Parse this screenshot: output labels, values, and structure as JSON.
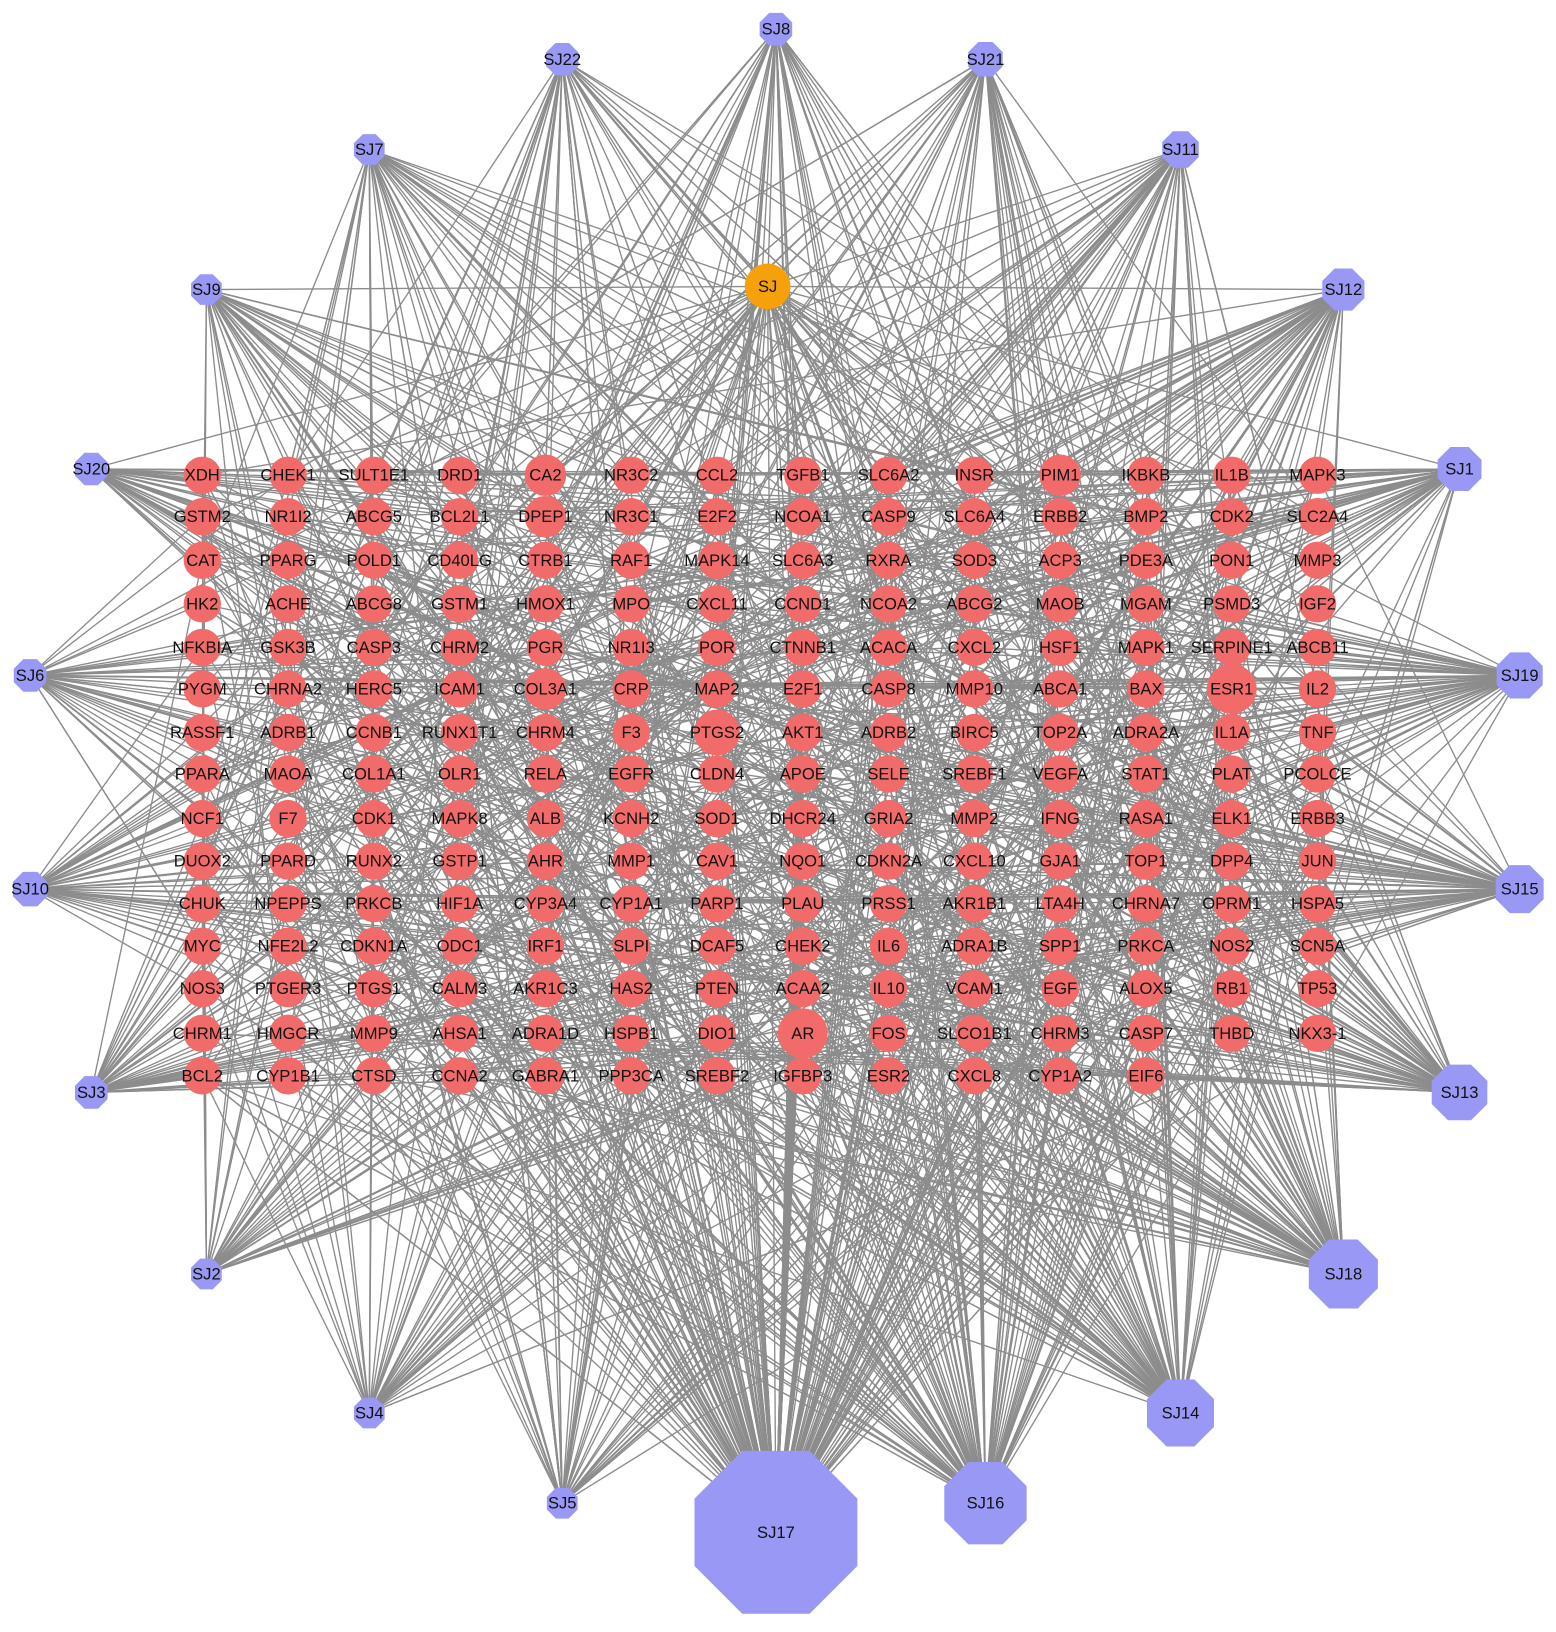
{
  "nodes": {
    "hub": "SJ",
    "compounds": [
      "SJ8",
      "SJ22",
      "SJ21",
      "SJ7",
      "SJ11",
      "SJ9",
      "SJ12",
      "SJ20",
      "SJ1",
      "SJ6",
      "SJ19",
      "SJ10",
      "SJ15",
      "SJ3",
      "SJ13",
      "SJ2",
      "SJ18",
      "SJ4",
      "SJ14",
      "SJ5",
      "SJ16",
      "SJ17"
    ],
    "targets": [
      [
        "XDH",
        "CHEK1",
        "SULT1E1",
        "DRD1",
        "CA2",
        "NR3C2",
        "CCL2",
        "TGFB1",
        "SLC6A2",
        "INSR",
        "PIM1",
        "IKBKB",
        "IL1B",
        "MAPK3"
      ],
      [
        "GSTM2",
        "NR1I2",
        "ABCG5",
        "BCL2L1",
        "DPEP1",
        "NR3C1",
        "E2F2",
        "NCOA1",
        "CASP9",
        "SLC6A4",
        "ERBB2",
        "BMP2",
        "CDK2",
        "SLC2A4"
      ],
      [
        "CAT",
        "PPARG",
        "POLD1",
        "CD40LG",
        "CTRB1",
        "RAF1",
        "MAPK14",
        "SLC6A3",
        "RXRA",
        "SOD3",
        "ACP3",
        "PDE3A",
        "PON1",
        "MMP3"
      ],
      [
        "HK2",
        "ACHE",
        "ABCG8",
        "GSTM1",
        "HMOX1",
        "MPO",
        "CXCL11",
        "CCND1",
        "NCOA2",
        "ABCG2",
        "MAOB",
        "MGAM",
        "PSMD3",
        "IGF2"
      ],
      [
        "NFKBIA",
        "GSK3B",
        "CASP3",
        "CHRM2",
        "PGR",
        "NR1I3",
        "POR",
        "CTNNB1",
        "ACACA",
        "CXCL2",
        "HSF1",
        "MAPK1",
        "SERPINE1",
        "ABCB11"
      ],
      [
        "PYGM",
        "CHRNA2",
        "HERC5",
        "ICAM1",
        "COL3A1",
        "CRP",
        "MAP2",
        "E2F1",
        "CASP8",
        "MMP10",
        "ABCA1",
        "BAX",
        "ESR1",
        "IL2"
      ],
      [
        "RASSF1",
        "ADRB1",
        "CCNB1",
        "RUNX1T1",
        "CHRM4",
        "F3",
        "PTGS2",
        "AKT1",
        "ADRB2",
        "BIRC5",
        "TOP2A",
        "ADRA2A",
        "IL1A",
        "TNF"
      ],
      [
        "PPARA",
        "MAOA",
        "COL1A1",
        "OLR1",
        "RELA",
        "EGFR",
        "CLDN4",
        "APOE",
        "SELE",
        "SREBF1",
        "VEGFA",
        "STAT1",
        "PLAT",
        "PCOLCE"
      ],
      [
        "NCF1",
        "F7",
        "CDK1",
        "MAPK8",
        "ALB",
        "KCNH2",
        "SOD1",
        "DHCR24",
        "GRIA2",
        "MMP2",
        "IFNG",
        "RASA1",
        "ELK1",
        "ERBB3"
      ],
      [
        "DUOX2",
        "PPARD",
        "RUNX2",
        "GSTP1",
        "AHR",
        "MMP1",
        "CAV1",
        "NQO1",
        "CDKN2A",
        "CXCL10",
        "GJA1",
        "TOP1",
        "DPP4",
        "JUN"
      ],
      [
        "CHUK",
        "NPEPPS",
        "PRKCB",
        "HIF1A",
        "CYP3A4",
        "CYP1A1",
        "PARP1",
        "PLAU",
        "PRSS1",
        "AKR1B1",
        "LTA4H",
        "CHRNA7",
        "OPRM1",
        "HSPA5"
      ],
      [
        "MYC",
        "NFE2L2",
        "CDKN1A",
        "ODC1",
        "IRF1",
        "SLPI",
        "DCAF5",
        "CHEK2",
        "IL6",
        "ADRA1B",
        "SPP1",
        "PRKCA",
        "NOS2",
        "SCN5A"
      ],
      [
        "NOS3",
        "PTGER3",
        "PTGS1",
        "CALM3",
        "AKR1C3",
        "HAS2",
        "PTEN",
        "ACAA2",
        "IL10",
        "VCAM1",
        "EGF",
        "ALOX5",
        "RB1",
        "TP53"
      ],
      [
        "CHRM1",
        "HMGCR",
        "MMP9",
        "AHSA1",
        "ADRA1D",
        "HSPB1",
        "DIO1",
        "AR",
        "FOS",
        "SLCO1B1",
        "CHRM3",
        "CASP7",
        "THBD",
        "NKX3-1"
      ],
      [
        "BCL2",
        "CYP1B1",
        "CTSD",
        "CCNA2",
        "GABRA1",
        "PPP3CA",
        "SREBF2",
        "IGFBP3",
        "ESR2",
        "CXCL8",
        "CYP1A2",
        "EIF6"
      ]
    ]
  }
}
